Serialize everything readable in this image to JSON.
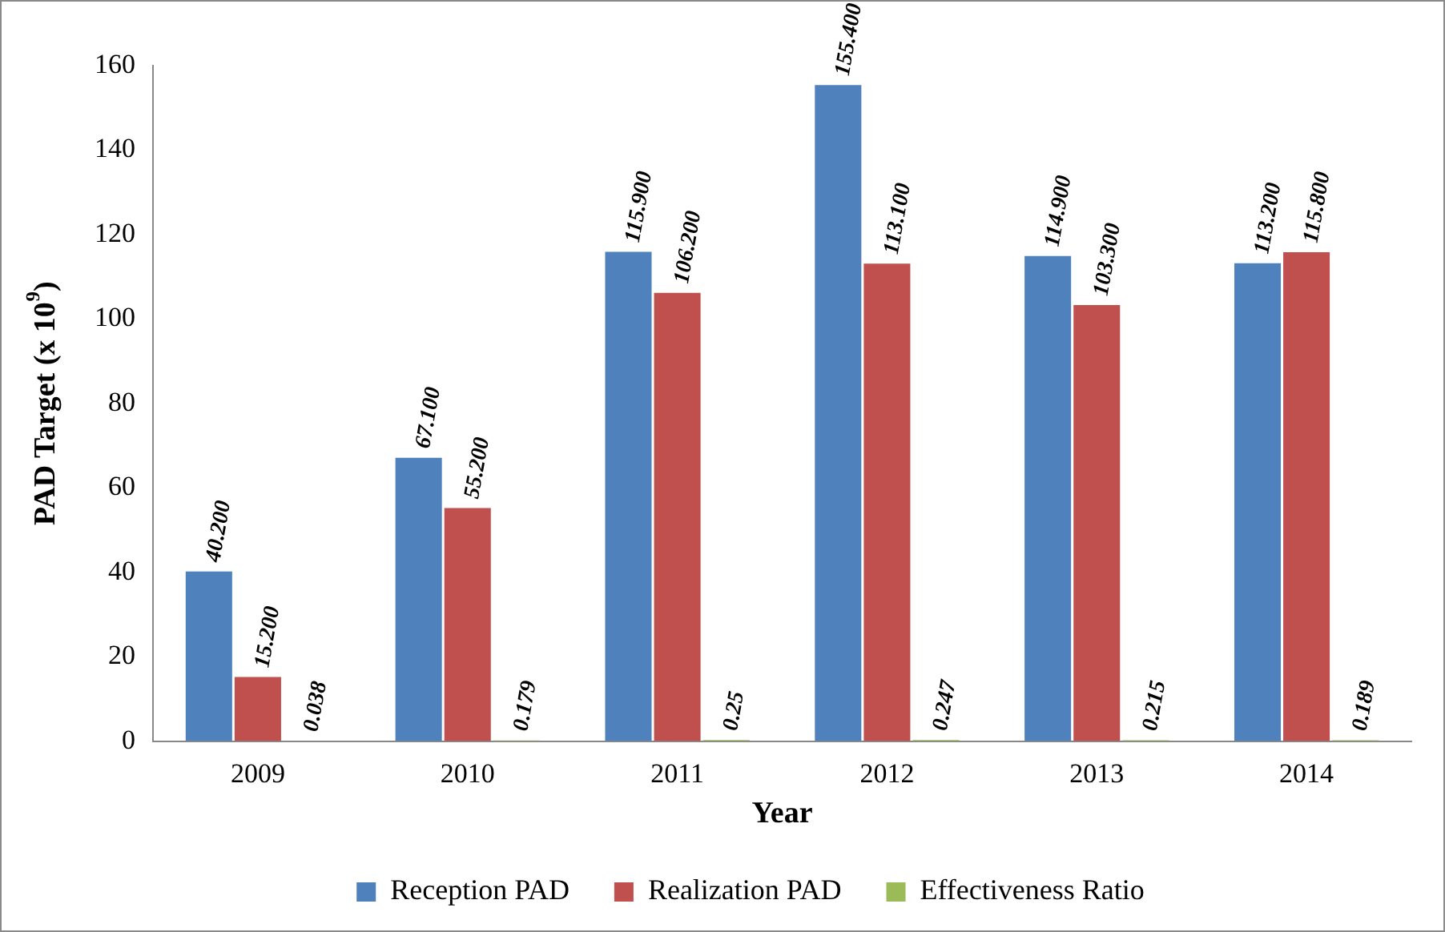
{
  "chart_data": {
    "type": "bar",
    "xlabel": "Year",
    "ylabel": "PAD Target (x 10$^{9}$)",
    "categories": [
      "2009",
      "2010",
      "2011",
      "2012",
      "2013",
      "2014"
    ],
    "series": [
      {
        "name": "Reception PAD",
        "color": "#4f81bd",
        "values": [
          40.2,
          67.1,
          115.9,
          155.4,
          114.9,
          113.2
        ],
        "value_labels": [
          "40.200",
          "67.100",
          "115.900",
          "155.400",
          "114.900",
          "113.200"
        ]
      },
      {
        "name": "Realization PAD",
        "color": "#c0504d",
        "values": [
          15.2,
          55.2,
          106.2,
          113.1,
          103.3,
          115.8
        ],
        "value_labels": [
          "15.200",
          "55.200",
          "106.200",
          "113.100",
          "103.300",
          "115.800"
        ]
      },
      {
        "name": "Effectiveness Ratio",
        "color": "#9bbb59",
        "values": [
          0.038,
          0.179,
          0.25,
          0.247,
          0.215,
          0.189
        ],
        "value_labels": [
          "0.038",
          "0.179",
          "0.25",
          "0.247",
          "0.215",
          "0.189"
        ]
      }
    ],
    "ylim": [
      0,
      160
    ],
    "yticks": [
      0,
      20,
      40,
      60,
      80,
      100,
      120,
      140,
      160
    ],
    "grid": false,
    "legend": "bottom"
  }
}
